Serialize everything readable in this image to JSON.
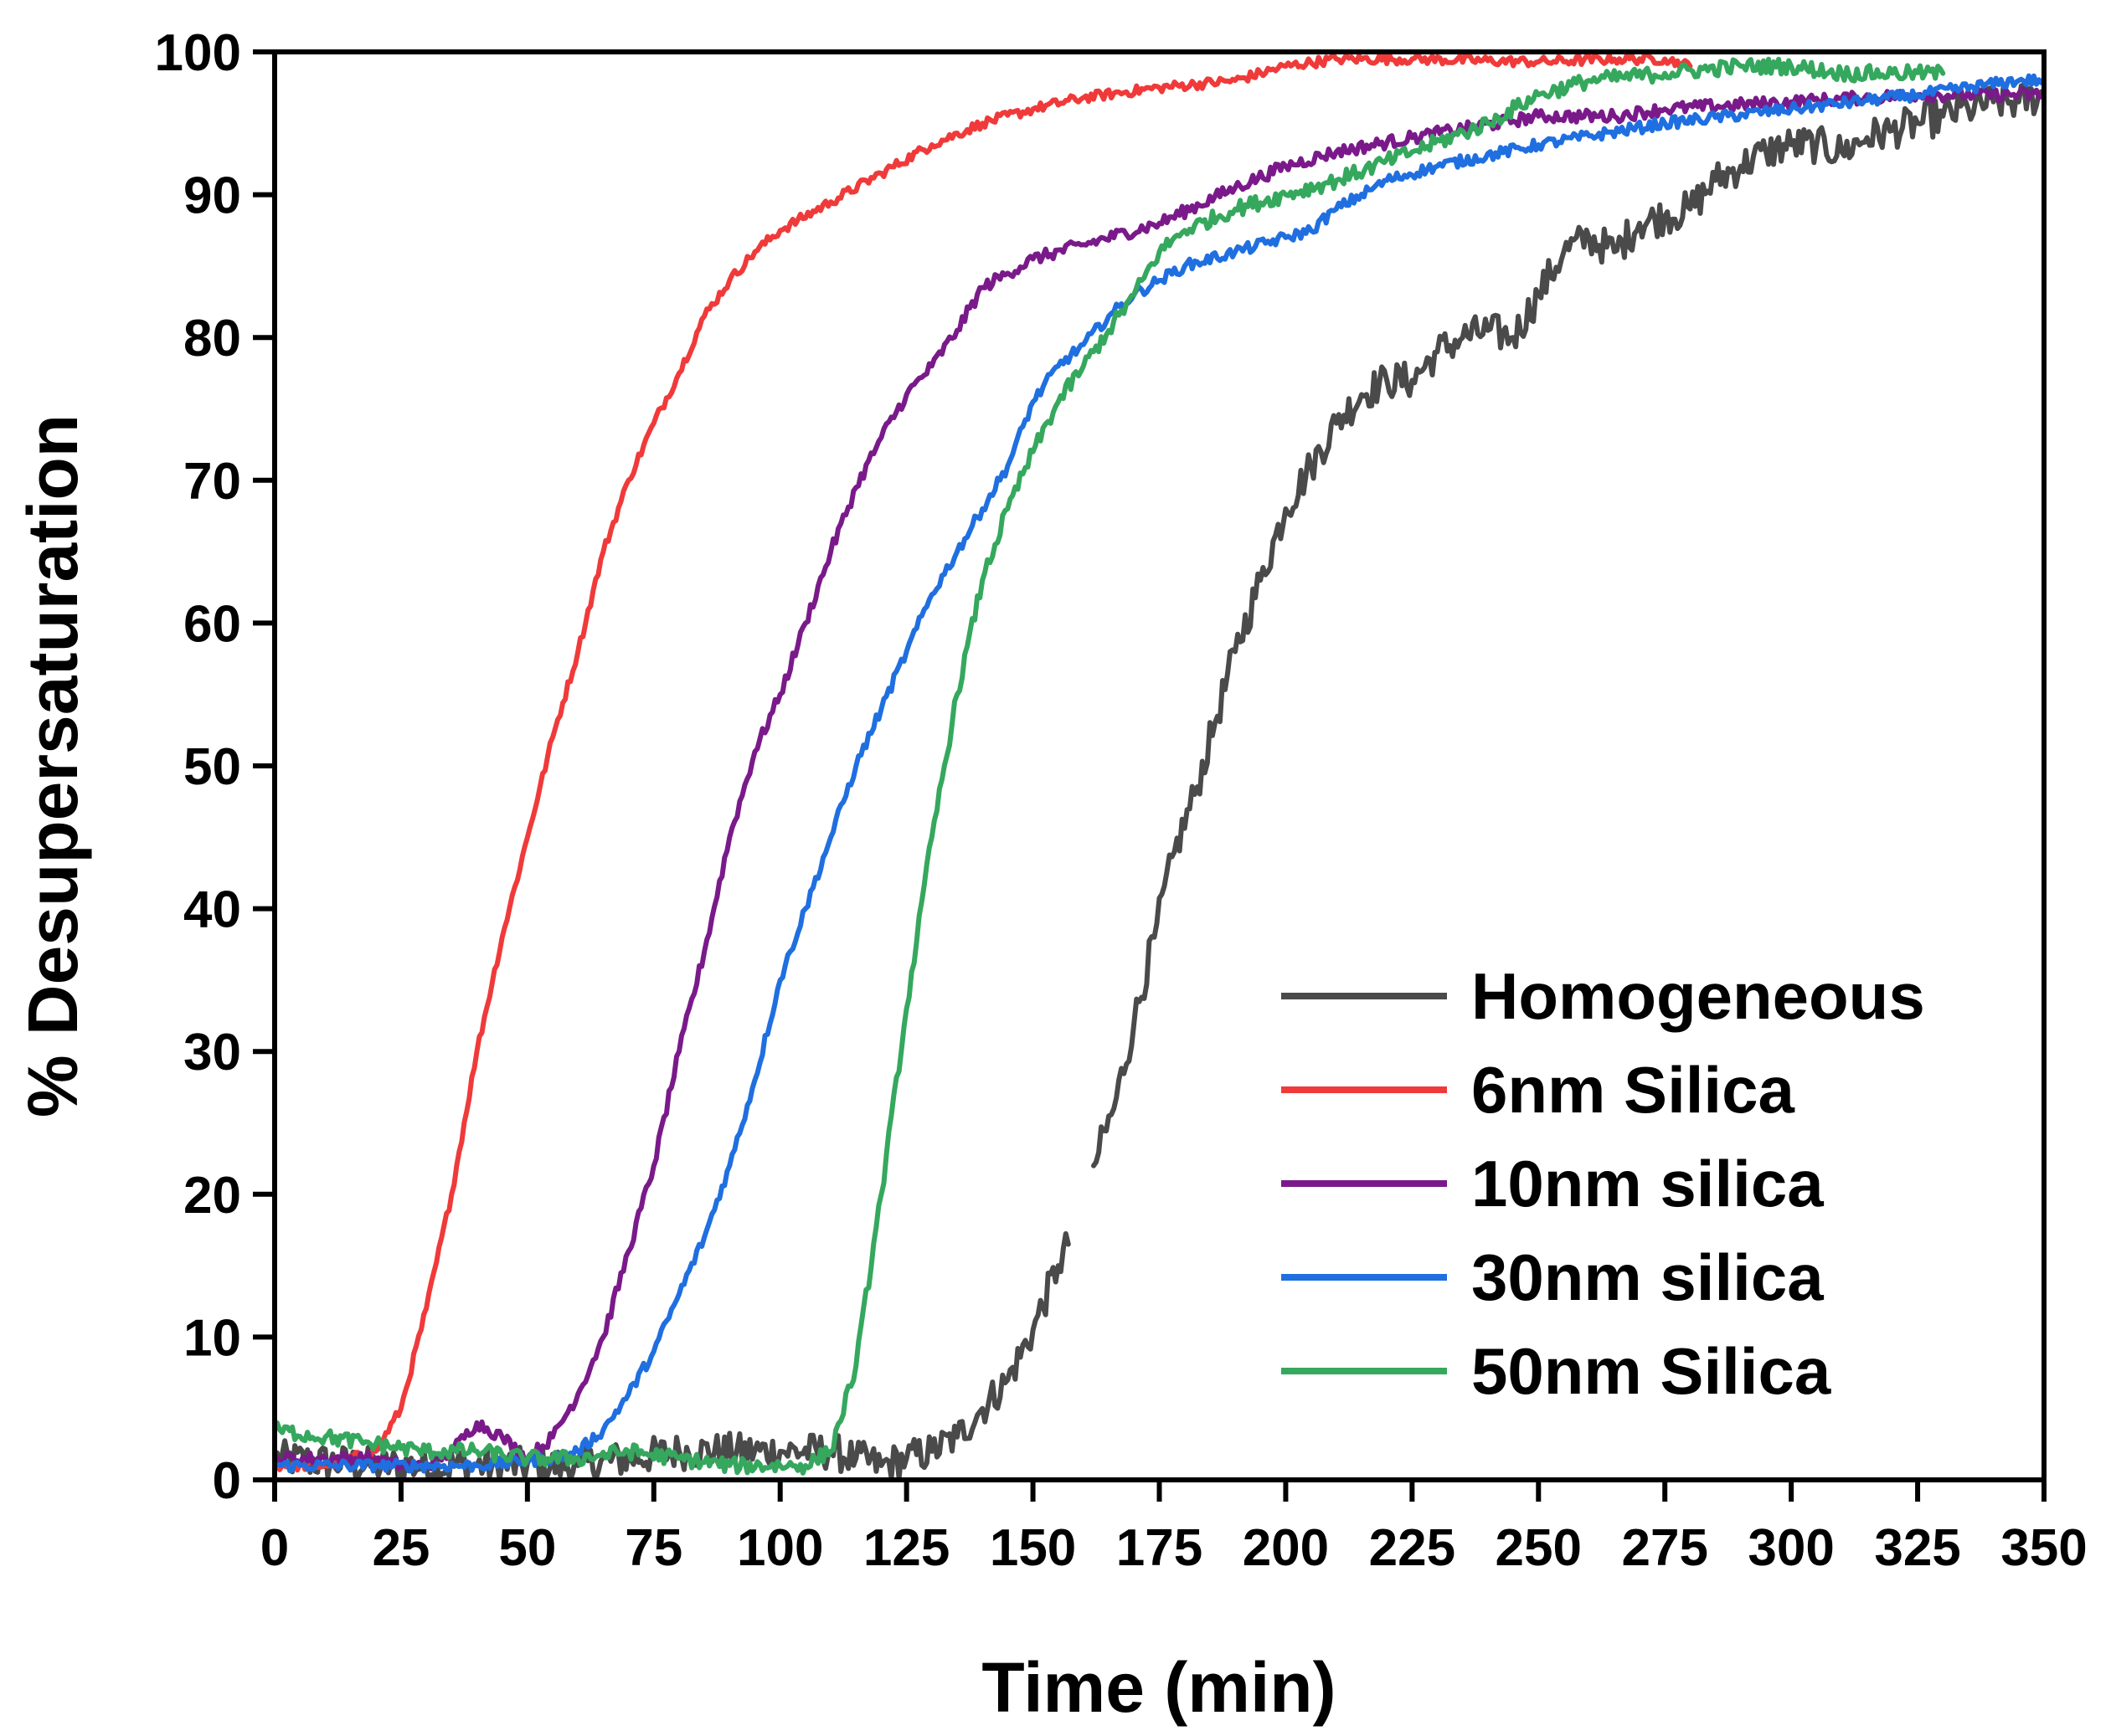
{
  "chart_data": {
    "type": "line",
    "title": "",
    "xlabel": "Time (min)",
    "ylabel": "% Desupersaturation",
    "xlim": [
      0,
      350
    ],
    "ylim": [
      0,
      100
    ],
    "xticks": [
      0,
      25,
      50,
      75,
      100,
      125,
      150,
      175,
      200,
      225,
      250,
      275,
      300,
      325,
      350
    ],
    "yticks": [
      0,
      10,
      20,
      30,
      40,
      50,
      60,
      70,
      80,
      90,
      100
    ],
    "grid": false,
    "legend_position": "bottom-right",
    "series": [
      {
        "name": "Homogeneous",
        "color": "#4a4a4a",
        "points": [
          [
            0,
            1.5
          ],
          [
            20,
            1.0
          ],
          [
            40,
            1.0
          ],
          [
            60,
            1.0
          ],
          [
            80,
            2.0
          ],
          [
            100,
            2.0
          ],
          [
            110,
            2.0
          ],
          [
            115,
            1.5
          ],
          [
            120,
            1.0
          ],
          [
            125,
            1.5
          ],
          [
            130,
            2.0
          ],
          [
            135,
            3.0
          ],
          [
            140,
            5.0
          ],
          [
            145,
            7.0
          ],
          [
            150,
            10.5
          ],
          [
            155,
            15.0
          ],
          [
            157,
            16.5
          ],
          [
            157.5,
            null
          ],
          [
            162,
            22.0
          ],
          [
            166,
            26.0
          ],
          [
            170,
            32.0
          ],
          [
            174,
            38.0
          ],
          [
            178,
            44.0
          ],
          [
            182,
            48.0
          ],
          [
            186,
            53.0
          ],
          [
            190,
            58.0
          ],
          [
            195,
            63.0
          ],
          [
            200,
            68.0
          ],
          [
            205,
            71.0
          ],
          [
            210,
            74.0
          ],
          [
            215,
            76.0
          ],
          [
            220,
            77.0
          ],
          [
            225,
            77.0
          ],
          [
            230,
            79.0
          ],
          [
            235,
            80.0
          ],
          [
            240,
            80.5
          ],
          [
            245,
            80.0
          ],
          [
            250,
            83.0
          ],
          [
            255,
            86.0
          ],
          [
            260,
            87.0
          ],
          [
            265,
            86.0
          ],
          [
            270,
            88.0
          ],
          [
            275,
            88.5
          ],
          [
            280,
            89.0
          ],
          [
            285,
            91.0
          ],
          [
            290,
            92.0
          ],
          [
            295,
            93.0
          ],
          [
            300,
            93.5
          ],
          [
            305,
            93.5
          ],
          [
            310,
            93.0
          ],
          [
            315,
            94.0
          ],
          [
            320,
            94.5
          ],
          [
            325,
            95.0
          ],
          [
            330,
            95.5
          ],
          [
            335,
            96.0
          ],
          [
            340,
            96.5
          ],
          [
            345,
            96.5
          ],
          [
            350,
            97.0
          ]
        ]
      },
      {
        "name": "6nm Silica",
        "color": "#f03a3a",
        "points": [
          [
            0,
            1.0
          ],
          [
            10,
            1.0
          ],
          [
            20,
            2.0
          ],
          [
            25,
            5.0
          ],
          [
            30,
            12.0
          ],
          [
            35,
            20.0
          ],
          [
            40,
            30.0
          ],
          [
            45,
            38.0
          ],
          [
            50,
            45.0
          ],
          [
            55,
            52.0
          ],
          [
            60,
            58.0
          ],
          [
            65,
            65.0
          ],
          [
            70,
            70.0
          ],
          [
            75,
            74.0
          ],
          [
            80,
            77.5
          ],
          [
            85,
            81.5
          ],
          [
            90,
            84.0
          ],
          [
            95,
            86.0
          ],
          [
            100,
            87.5
          ],
          [
            110,
            89.5
          ],
          [
            120,
            91.5
          ],
          [
            130,
            93.5
          ],
          [
            140,
            95.0
          ],
          [
            150,
            96.0
          ],
          [
            160,
            96.8
          ],
          [
            175,
            97.5
          ],
          [
            190,
            98.0
          ],
          [
            200,
            99.0
          ],
          [
            210,
            99.5
          ],
          [
            225,
            99.5
          ],
          [
            250,
            99.3
          ],
          [
            265,
            99.5
          ],
          [
            275,
            99.5
          ],
          [
            280,
            99.0
          ]
        ]
      },
      {
        "name": "10nm silica",
        "color": "#7a1a8a",
        "points": [
          [
            0,
            1.5
          ],
          [
            10,
            1.5
          ],
          [
            20,
            1.5
          ],
          [
            25,
            1.0
          ],
          [
            30,
            1.0
          ],
          [
            35,
            2.0
          ],
          [
            40,
            4.0
          ],
          [
            45,
            3.0
          ],
          [
            50,
            1.5
          ],
          [
            55,
            3.0
          ],
          [
            60,
            6.0
          ],
          [
            65,
            10.0
          ],
          [
            70,
            16.0
          ],
          [
            75,
            22.0
          ],
          [
            80,
            30.0
          ],
          [
            85,
            37.0
          ],
          [
            90,
            45.0
          ],
          [
            95,
            51.0
          ],
          [
            100,
            55.0
          ],
          [
            105,
            60.0
          ],
          [
            110,
            65.0
          ],
          [
            115,
            69.5
          ],
          [
            120,
            73.0
          ],
          [
            125,
            76.0
          ],
          [
            130,
            78.0
          ],
          [
            135,
            80.5
          ],
          [
            140,
            83.5
          ],
          [
            145,
            84.5
          ],
          [
            150,
            85.5
          ],
          [
            160,
            86.5
          ],
          [
            175,
            88.0
          ],
          [
            190,
            90.5
          ],
          [
            200,
            92.0
          ],
          [
            210,
            93.0
          ],
          [
            225,
            94.0
          ],
          [
            250,
            95.5
          ],
          [
            265,
            95.5
          ],
          [
            275,
            96.0
          ],
          [
            300,
            96.5
          ],
          [
            325,
            97.0
          ],
          [
            350,
            97.0
          ]
        ]
      },
      {
        "name": "30nm silica",
        "color": "#1f6fe0",
        "points": [
          [
            0,
            1.0
          ],
          [
            20,
            1.0
          ],
          [
            40,
            1.0
          ],
          [
            55,
            1.5
          ],
          [
            60,
            2.0
          ],
          [
            65,
            3.5
          ],
          [
            70,
            6.0
          ],
          [
            75,
            9.0
          ],
          [
            80,
            13.0
          ],
          [
            85,
            17.0
          ],
          [
            90,
            22.0
          ],
          [
            95,
            28.0
          ],
          [
            100,
            35.0
          ],
          [
            105,
            40.0
          ],
          [
            110,
            45.0
          ],
          [
            115,
            50.0
          ],
          [
            120,
            54.0
          ],
          [
            125,
            58.0
          ],
          [
            130,
            62.0
          ],
          [
            135,
            65.0
          ],
          [
            140,
            68.0
          ],
          [
            145,
            71.0
          ],
          [
            150,
            75.5
          ],
          [
            155,
            78.0
          ],
          [
            160,
            79.5
          ],
          [
            165,
            81.5
          ],
          [
            170,
            83.0
          ],
          [
            175,
            84.0
          ],
          [
            180,
            85.0
          ],
          [
            190,
            86.0
          ],
          [
            200,
            87.0
          ],
          [
            205,
            87.5
          ],
          [
            210,
            89.0
          ],
          [
            220,
            91.0
          ],
          [
            230,
            92.0
          ],
          [
            250,
            93.5
          ],
          [
            275,
            95.0
          ],
          [
            300,
            96.0
          ],
          [
            325,
            97.0
          ],
          [
            345,
            98.0
          ],
          [
            350,
            98.0
          ]
        ]
      },
      {
        "name": "50nm Silica",
        "color": "#35a85e",
        "points": [
          [
            0,
            3.5
          ],
          [
            10,
            3.0
          ],
          [
            20,
            2.5
          ],
          [
            30,
            2.0
          ],
          [
            40,
            2.0
          ],
          [
            50,
            1.5
          ],
          [
            60,
            1.5
          ],
          [
            70,
            2.0
          ],
          [
            80,
            1.5
          ],
          [
            90,
            1.0
          ],
          [
            100,
            1.0
          ],
          [
            105,
            1.0
          ],
          [
            110,
            2.0
          ],
          [
            115,
            8.0
          ],
          [
            120,
            20.0
          ],
          [
            125,
            33.0
          ],
          [
            130,
            45.0
          ],
          [
            135,
            55.0
          ],
          [
            140,
            63.0
          ],
          [
            145,
            68.0
          ],
          [
            150,
            72.0
          ],
          [
            155,
            75.5
          ],
          [
            160,
            78.0
          ],
          [
            165,
            80.5
          ],
          [
            170,
            83.0
          ],
          [
            175,
            86.0
          ],
          [
            180,
            87.5
          ],
          [
            190,
            89.0
          ],
          [
            200,
            90.0
          ],
          [
            210,
            91.0
          ],
          [
            225,
            93.0
          ],
          [
            240,
            95.0
          ],
          [
            250,
            97.0
          ],
          [
            260,
            98.0
          ],
          [
            275,
            98.5
          ],
          [
            290,
            99.0
          ],
          [
            300,
            99.0
          ],
          [
            310,
            98.5
          ],
          [
            320,
            98.5
          ],
          [
            330,
            98.5
          ]
        ]
      }
    ]
  }
}
